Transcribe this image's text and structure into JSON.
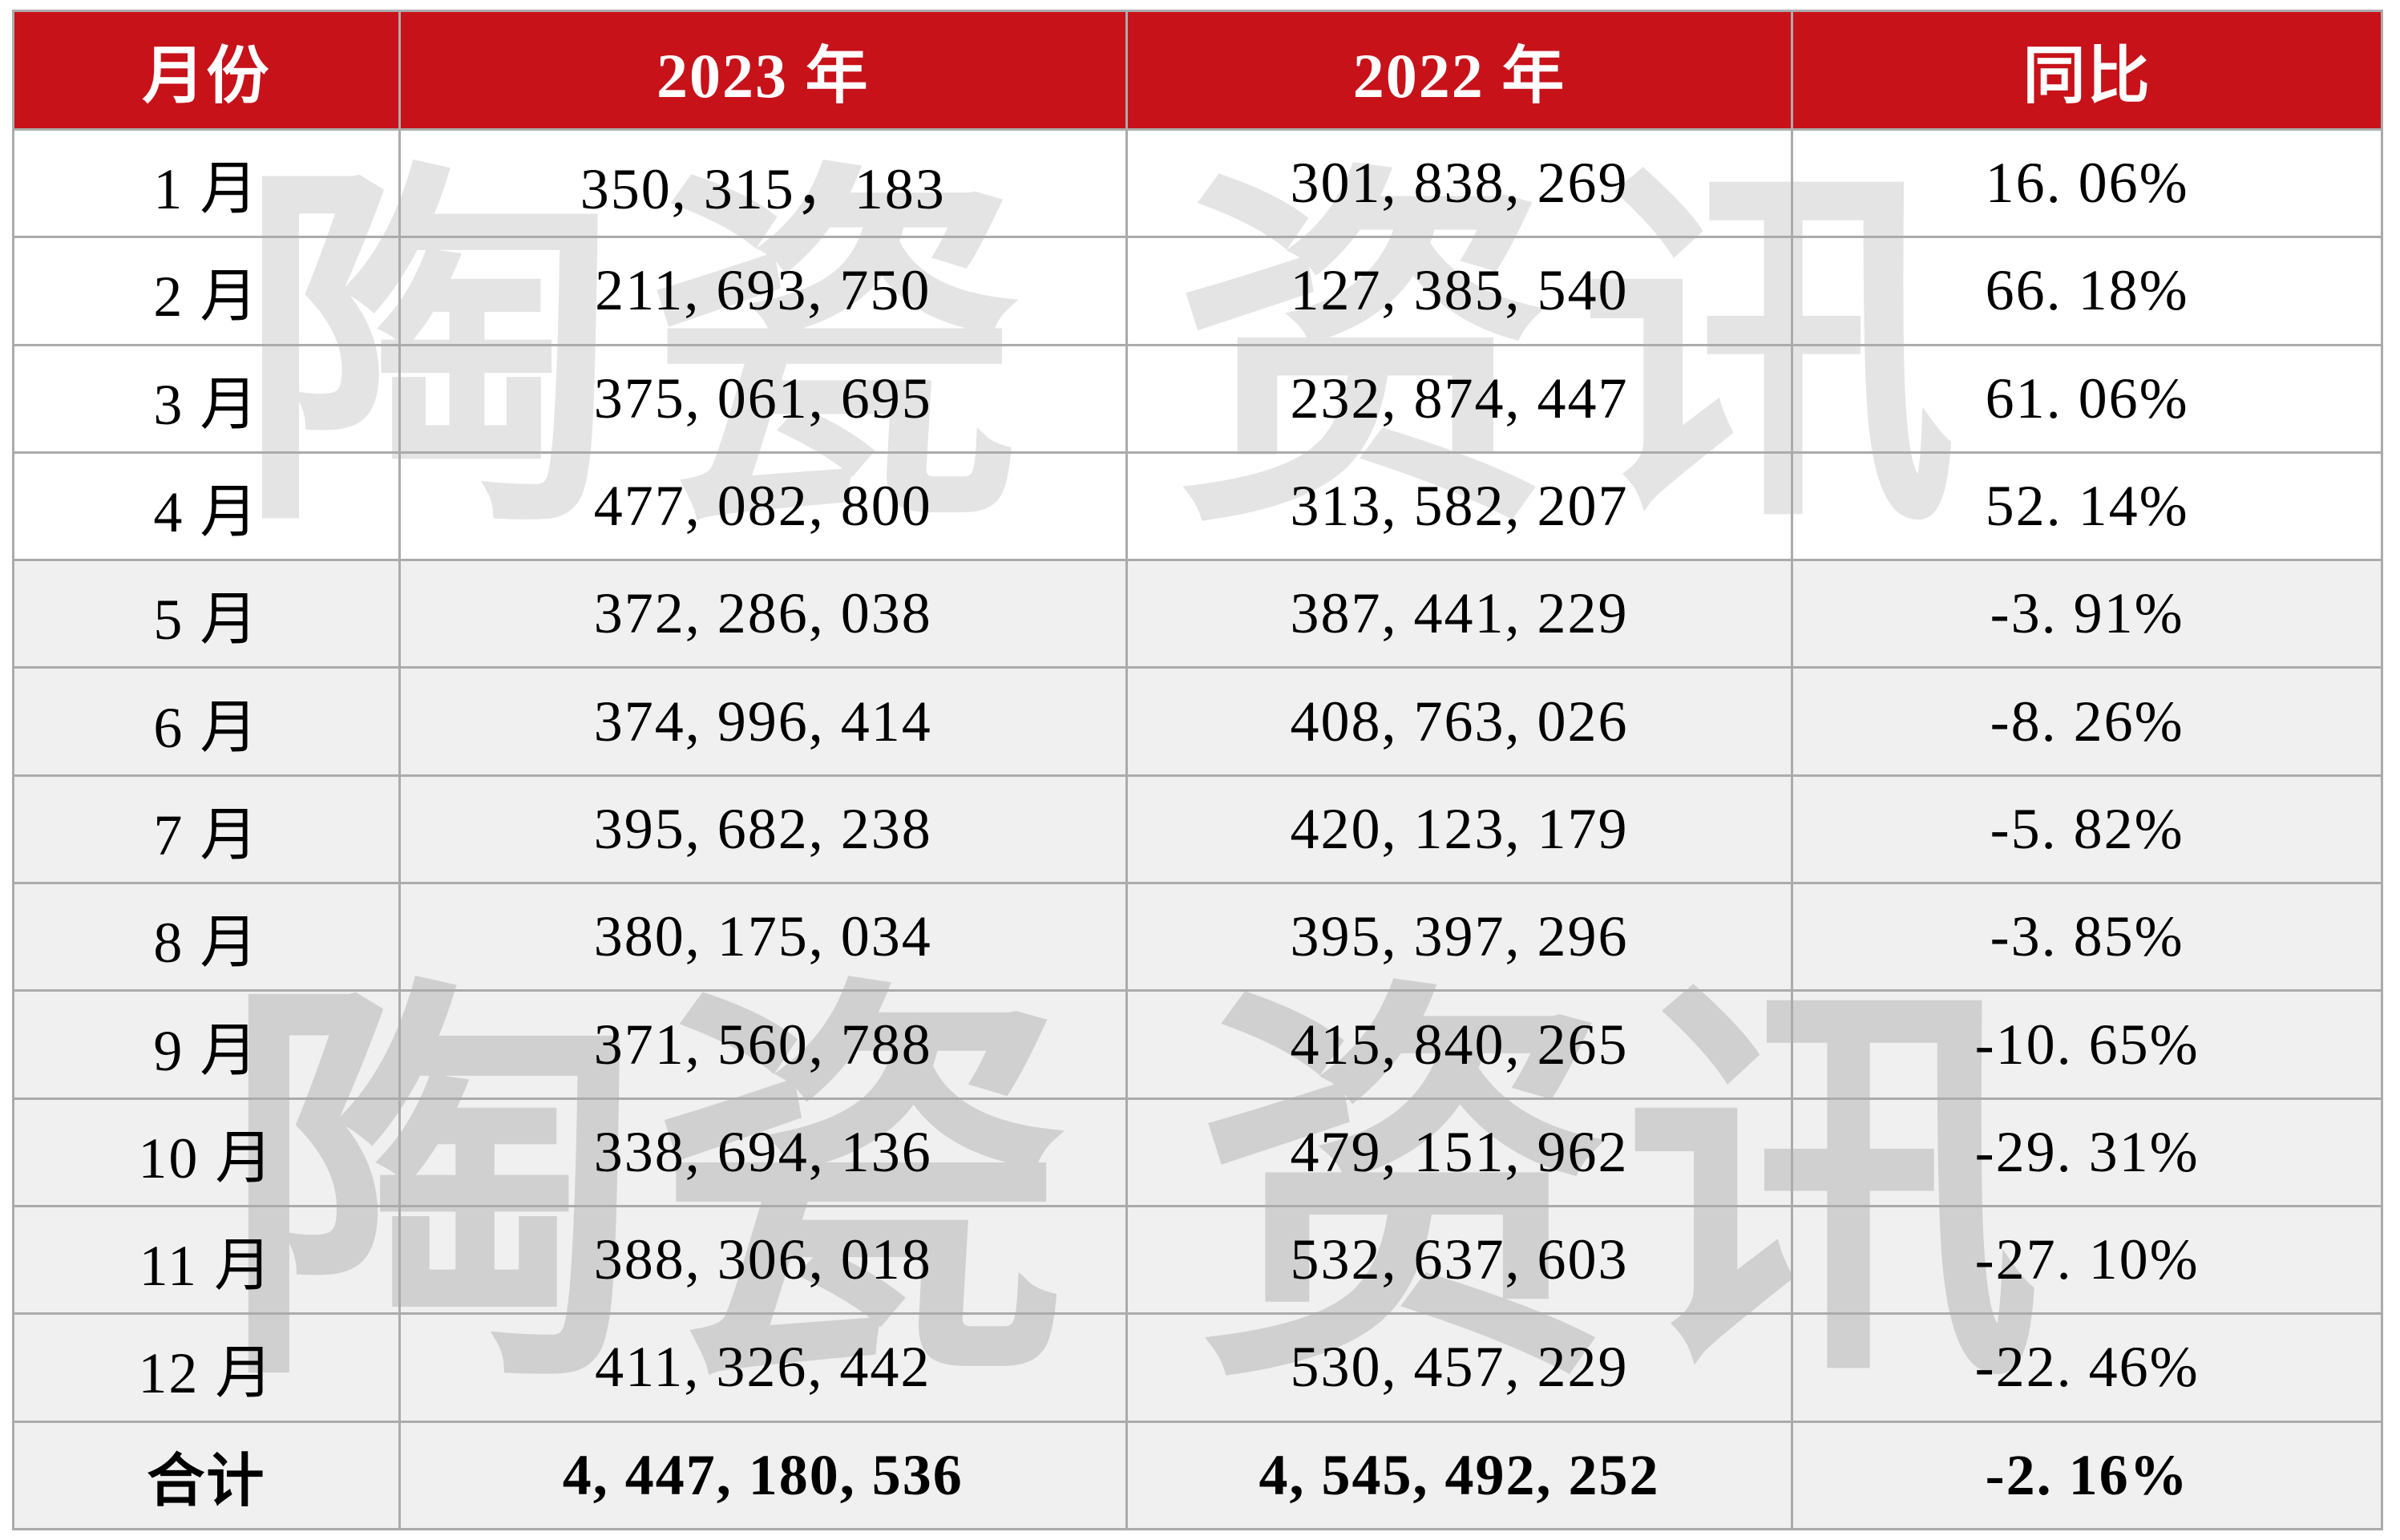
{
  "table": {
    "headers": [
      "月份",
      "2023 年",
      "2022 年",
      "同比"
    ],
    "rows": [
      {
        "month": "1 月",
        "y2023": "350, 315，183",
        "y2022": "301, 838, 269",
        "yoy": "16. 06%",
        "shaded": false,
        "total": false
      },
      {
        "month": "2 月",
        "y2023": "211, 693, 750",
        "y2022": "127, 385, 540",
        "yoy": "66. 18%",
        "shaded": false,
        "total": false
      },
      {
        "month": "3 月",
        "y2023": "375, 061, 695",
        "y2022": "232, 874, 447",
        "yoy": "61. 06%",
        "shaded": false,
        "total": false
      },
      {
        "month": "4 月",
        "y2023": "477, 082, 800",
        "y2022": "313, 582, 207",
        "yoy": "52. 14%",
        "shaded": false,
        "total": false
      },
      {
        "month": "5 月",
        "y2023": "372, 286, 038",
        "y2022": "387, 441, 229",
        "yoy": "-3. 91%",
        "shaded": true,
        "total": false
      },
      {
        "month": "6 月",
        "y2023": "374, 996, 414",
        "y2022": "408, 763, 026",
        "yoy": "-8. 26%",
        "shaded": true,
        "total": false
      },
      {
        "month": "7 月",
        "y2023": "395, 682, 238",
        "y2022": "420, 123, 179",
        "yoy": "-5. 82%",
        "shaded": true,
        "total": false
      },
      {
        "month": "8 月",
        "y2023": "380, 175, 034",
        "y2022": "395, 397, 296",
        "yoy": "-3. 85%",
        "shaded": true,
        "total": false
      },
      {
        "month": "9 月",
        "y2023": "371, 560, 788",
        "y2022": "415, 840, 265",
        "yoy": "-10. 65%",
        "shaded": true,
        "total": false
      },
      {
        "month": "10 月",
        "y2023": "338, 694, 136",
        "y2022": "479, 151, 962",
        "yoy": "-29. 31%",
        "shaded": true,
        "total": false
      },
      {
        "month": "11 月",
        "y2023": "388, 306, 018",
        "y2022": "532, 637, 603",
        "yoy": "-27. 10%",
        "shaded": true,
        "total": false
      },
      {
        "month": "12 月",
        "y2023": "411, 326, 442",
        "y2022": "530, 457, 229",
        "yoy": "-22. 46%",
        "shaded": true,
        "total": false
      },
      {
        "month": "合计",
        "y2023": "4, 447, 180, 536",
        "y2022": "4, 545, 492, 252",
        "yoy": "-2. 16%",
        "shaded": true,
        "total": true
      }
    ]
  },
  "watermark": {
    "upper": "陶瓷 资讯",
    "lower": "陶瓷 资讯"
  },
  "colors": {
    "header_bg": "#C7121A",
    "header_text": "#FFFFFF",
    "shaded_row_bg": "#F0F0F0",
    "border": "#ABABAB",
    "watermark_gray": "#E2E2E2"
  },
  "chart_data": {
    "type": "table",
    "title": "2023年 vs 2022年 月度数据同比表",
    "columns": [
      "月份",
      "2023 年",
      "2022 年",
      "同比"
    ],
    "rows": [
      {
        "month": "1月",
        "v2023": 350315183,
        "v2022": 301838269,
        "yoy_pct": 16.06
      },
      {
        "month": "2月",
        "v2023": 211693750,
        "v2022": 127385540,
        "yoy_pct": 66.18
      },
      {
        "month": "3月",
        "v2023": 375061695,
        "v2022": 232874447,
        "yoy_pct": 61.06
      },
      {
        "month": "4月",
        "v2023": 477082800,
        "v2022": 313582207,
        "yoy_pct": 52.14
      },
      {
        "month": "5月",
        "v2023": 372286038,
        "v2022": 387441229,
        "yoy_pct": -3.91
      },
      {
        "month": "6月",
        "v2023": 374996414,
        "v2022": 408763026,
        "yoy_pct": -8.26
      },
      {
        "month": "7月",
        "v2023": 395682238,
        "v2022": 420123179,
        "yoy_pct": -5.82
      },
      {
        "month": "8月",
        "v2023": 380175034,
        "v2022": 395397296,
        "yoy_pct": -3.85
      },
      {
        "month": "9月",
        "v2023": 371560788,
        "v2022": 415840265,
        "yoy_pct": -10.65
      },
      {
        "month": "10月",
        "v2023": 338694136,
        "v2022": 479151962,
        "yoy_pct": -29.31
      },
      {
        "month": "11月",
        "v2023": 388306018,
        "v2022": 532637603,
        "yoy_pct": -27.1
      },
      {
        "month": "12月",
        "v2023": 411326442,
        "v2022": 530457229,
        "yoy_pct": -22.46
      },
      {
        "month": "合计",
        "v2023": 4447180536,
        "v2022": 4545492252,
        "yoy_pct": -2.16
      }
    ]
  }
}
